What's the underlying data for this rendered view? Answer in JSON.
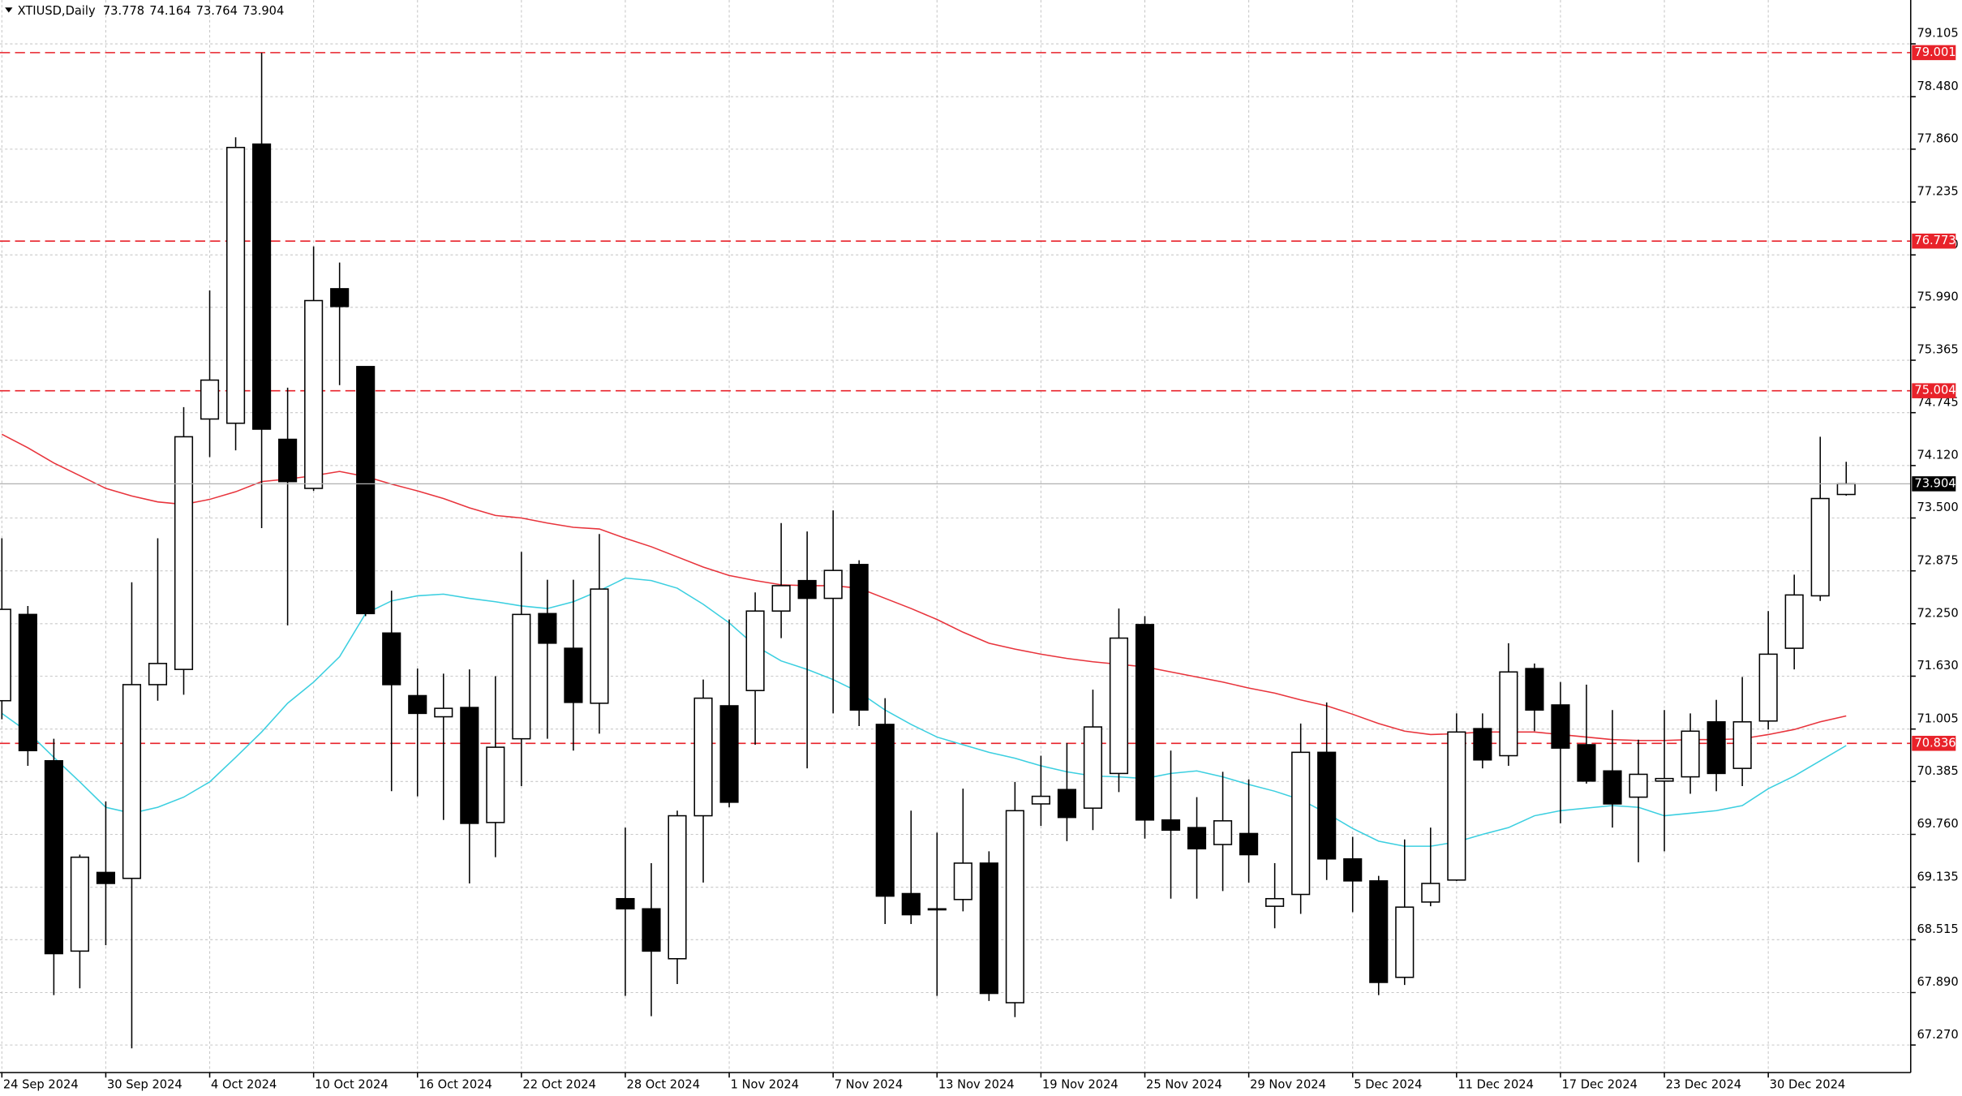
{
  "chart_data": {
    "type": "candlestick",
    "title": "XTIUSD,Daily",
    "categories": [
      "24 Sep 2024",
      null,
      null,
      null,
      "30 Sep 2024",
      null,
      null,
      null,
      "4 Oct 2024",
      null,
      null,
      null,
      "10 Oct 2024",
      null,
      null,
      null,
      "16 Oct 2024",
      null,
      null,
      null,
      "22 Oct 2024",
      null,
      null,
      null,
      "28 Oct 2024",
      null,
      null,
      null,
      "1 Nov 2024",
      null,
      null,
      null,
      "7 Nov 2024",
      null,
      null,
      null,
      "13 Nov 2024",
      null,
      null,
      null,
      "19 Nov 2024",
      null,
      null,
      null,
      "25 Nov 2024",
      null,
      null,
      null,
      "29 Nov 2024",
      null,
      null,
      null,
      "5 Dec 2024",
      null,
      null,
      null,
      "11 Dec 2024",
      null,
      null,
      null,
      "17 Dec 2024",
      null,
      null,
      null,
      "23 Dec 2024",
      null,
      null,
      null,
      "30 Dec 2024",
      null,
      null,
      null
    ],
    "open": [
      71.34,
      72.36,
      70.63,
      68.38,
      69.31,
      69.24,
      71.53,
      71.71,
      74.67,
      74.62,
      77.92,
      74.43,
      73.85,
      76.21,
      75.29,
      72.14,
      71.4,
      71.15,
      71.26,
      69.9,
      70.89,
      72.37,
      71.96,
      71.31,
      69.0,
      68.88,
      68.29,
      69.98,
      71.28,
      71.46,
      72.4,
      72.76,
      72.55,
      72.95,
      71.06,
      69.06,
      68.88,
      68.99,
      69.42,
      67.77,
      70.12,
      70.29,
      70.07,
      70.48,
      72.24,
      69.93,
      69.84,
      69.64,
      69.77,
      68.91,
      69.05,
      70.73,
      69.47,
      69.21,
      68.07,
      68.96,
      69.22,
      71.01,
      70.69,
      71.72,
      71.29,
      70.82,
      70.51,
      70.2,
      70.39,
      70.44,
      71.09,
      70.54,
      71.1,
      71.96,
      72.58,
      73.778
    ],
    "high": [
      73.26,
      72.46,
      70.89,
      69.52,
      70.15,
      72.74,
      73.26,
      74.81,
      76.19,
      78.0,
      79.0,
      75.04,
      76.71,
      76.52,
      75.29,
      72.64,
      71.72,
      71.66,
      71.71,
      71.63,
      73.1,
      72.77,
      72.77,
      73.31,
      69.84,
      69.42,
      70.04,
      71.59,
      72.3,
      72.62,
      73.44,
      73.34,
      73.59,
      73.0,
      71.37,
      70.04,
      69.78,
      70.3,
      69.56,
      70.38,
      70.69,
      70.84,
      71.47,
      72.43,
      72.34,
      70.75,
      70.2,
      70.5,
      70.41,
      69.42,
      71.07,
      71.32,
      69.73,
      69.27,
      69.7,
      69.84,
      71.19,
      71.19,
      72.02,
      71.78,
      71.56,
      71.53,
      71.23,
      70.88,
      71.23,
      71.19,
      71.35,
      71.62,
      72.4,
      72.83,
      74.46,
      74.164
    ],
    "low": [
      71.12,
      70.57,
      67.86,
      67.94,
      68.45,
      67.23,
      71.34,
      71.41,
      74.22,
      74.3,
      73.38,
      72.23,
      73.82,
      75.07,
      72.34,
      70.27,
      70.21,
      69.93,
      69.18,
      69.49,
      70.33,
      70.89,
      70.75,
      70.95,
      67.85,
      67.61,
      67.99,
      69.19,
      70.08,
      70.82,
      72.08,
      70.54,
      71.19,
      71.04,
      68.7,
      68.7,
      67.85,
      68.85,
      67.79,
      67.6,
      69.86,
      69.68,
      69.81,
      70.26,
      69.71,
      69.0,
      69.0,
      69.09,
      69.19,
      68.65,
      68.82,
      69.22,
      68.84,
      67.86,
      67.98,
      68.91,
      69.21,
      70.54,
      70.57,
      70.98,
      69.89,
      70.36,
      69.84,
      69.43,
      69.56,
      70.24,
      70.27,
      70.33,
      71.0,
      71.71,
      72.52,
      73.764
    ],
    "close": [
      72.42,
      70.75,
      68.35,
      69.49,
      69.18,
      71.53,
      71.78,
      74.46,
      75.13,
      77.88,
      74.55,
      73.93,
      76.07,
      76.0,
      72.37,
      71.53,
      71.19,
      71.25,
      69.89,
      70.79,
      72.36,
      72.02,
      71.32,
      72.66,
      68.88,
      68.38,
      69.98,
      71.37,
      70.14,
      72.4,
      72.7,
      72.55,
      72.88,
      71.23,
      69.03,
      68.81,
      68.87,
      69.42,
      67.88,
      70.04,
      70.21,
      69.96,
      71.03,
      72.08,
      69.93,
      69.81,
      69.59,
      69.92,
      69.52,
      69.0,
      70.73,
      69.47,
      69.21,
      68.01,
      68.9,
      69.18,
      70.97,
      70.64,
      71.68,
      71.23,
      70.78,
      70.39,
      70.12,
      70.47,
      70.42,
      70.98,
      70.48,
      71.09,
      71.89,
      72.59,
      73.73,
      73.904
    ],
    "overlays": [
      {
        "color": "#e8343c",
        "values": [
          74.49,
          74.33,
          74.15,
          74.0,
          73.85,
          73.76,
          73.69,
          73.66,
          73.72,
          73.81,
          73.93,
          73.96,
          74.0,
          74.05,
          73.99,
          73.9,
          73.82,
          73.73,
          73.62,
          73.53,
          73.5,
          73.44,
          73.39,
          73.37,
          73.26,
          73.16,
          73.04,
          72.92,
          72.82,
          72.76,
          72.71,
          72.7,
          72.7,
          72.67,
          72.55,
          72.43,
          72.3,
          72.15,
          72.02,
          71.95,
          71.89,
          71.84,
          71.8,
          71.77,
          71.74,
          71.68,
          71.62,
          71.56,
          71.49,
          71.43,
          71.35,
          71.28,
          71.18,
          71.07,
          70.98,
          70.94,
          70.95,
          70.97,
          70.97,
          70.97,
          70.94,
          70.91,
          70.88,
          70.87,
          70.87,
          70.88,
          70.88,
          70.89,
          70.94,
          71.0,
          71.09,
          71.16
        ]
      },
      {
        "color": "#3ccfe0",
        "values": [
          71.19,
          70.97,
          70.67,
          70.38,
          70.08,
          70.01,
          70.08,
          70.2,
          70.38,
          70.67,
          70.97,
          71.31,
          71.56,
          71.86,
          72.37,
          72.52,
          72.58,
          72.6,
          72.55,
          72.51,
          72.46,
          72.43,
          72.51,
          72.64,
          72.79,
          72.76,
          72.67,
          72.48,
          72.26,
          71.99,
          71.81,
          71.71,
          71.59,
          71.44,
          71.23,
          71.06,
          70.91,
          70.82,
          70.73,
          70.66,
          70.57,
          70.5,
          70.45,
          70.44,
          70.42,
          70.48,
          70.51,
          70.44,
          70.35,
          70.27,
          70.17,
          70.01,
          69.83,
          69.68,
          69.62,
          69.62,
          69.67,
          69.76,
          69.84,
          69.98,
          70.04,
          70.07,
          70.1,
          70.08,
          69.98,
          70.01,
          70.04,
          70.1,
          70.3,
          70.45,
          70.63,
          70.81
        ]
      }
    ],
    "levels": [
      79.001,
      76.773,
      75.004,
      70.836
    ],
    "level_color": "#e8222a",
    "ylim": [
      66.944,
      79.623
    ],
    "yticks": [
      79.105,
      {
        "value": 78.48,
        "label": "78.480"
      },
      {
        "value": 77.86,
        "label": "77.860"
      },
      77.235,
      {
        "value": 76.61,
        "label": "76.610"
      },
      {
        "value": 75.99,
        "label": "75.990"
      },
      75.365,
      74.745,
      {
        "value": 74.12,
        "label": "74.120"
      },
      {
        "value": 73.5,
        "label": "73.500"
      },
      72.875,
      {
        "value": 72.25,
        "label": "72.250"
      },
      {
        "value": 71.63,
        "label": "71.630"
      },
      71.005,
      70.385,
      {
        "value": 69.76,
        "label": "69.760"
      },
      69.135,
      68.515,
      {
        "value": 67.89,
        "label": "67.890"
      },
      {
        "value": 67.27,
        "label": "67.270"
      }
    ],
    "grid": true
  }
}
